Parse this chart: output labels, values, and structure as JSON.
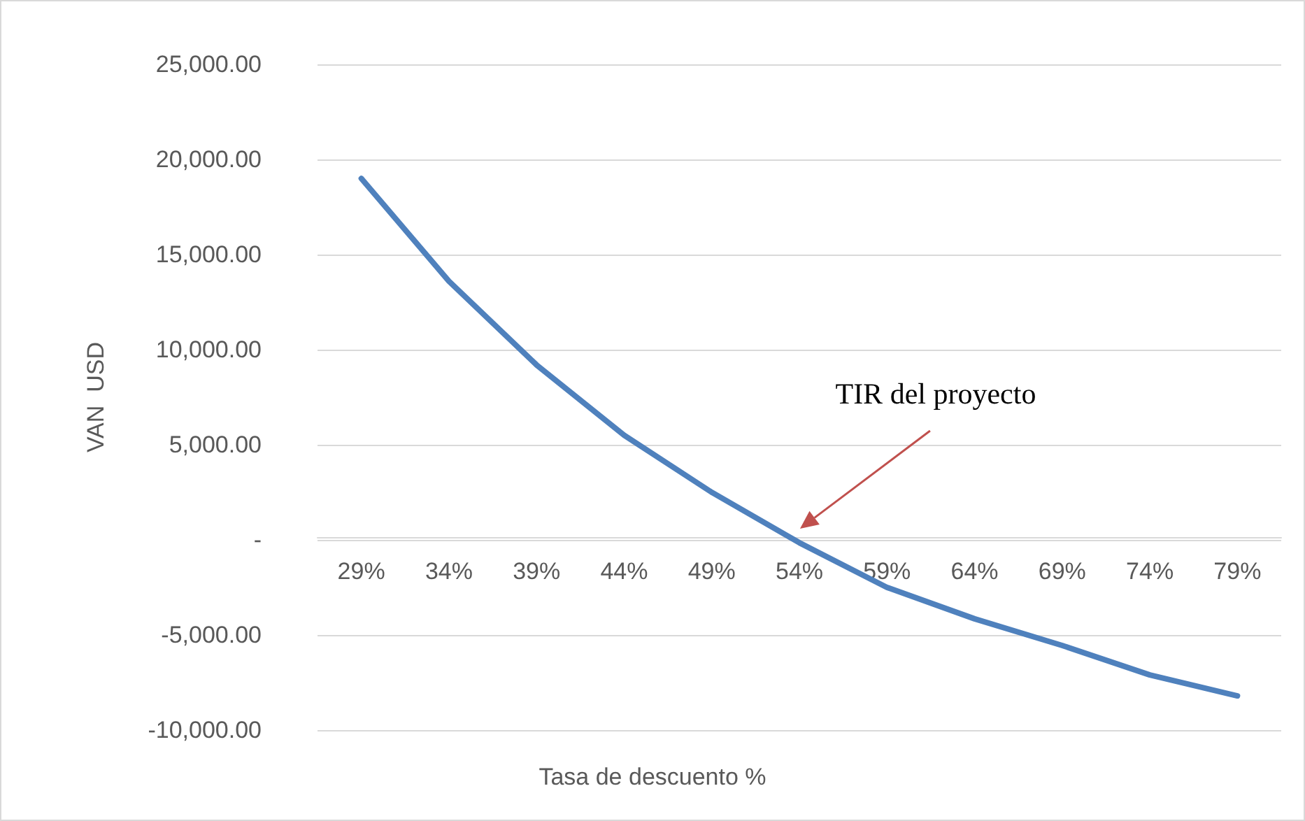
{
  "chart_data": {
    "type": "line",
    "xlabel": "Tasa de descuento %",
    "ylabel": "VAN  USD",
    "categories": [
      "29%",
      "34%",
      "39%",
      "44%",
      "49%",
      "54%",
      "59%",
      "64%",
      "69%",
      "74%",
      "79%"
    ],
    "series": [
      {
        "color": "#4f81bd",
        "values": [
          19000,
          13600,
          9200,
          5500,
          2500,
          -150,
          -2500,
          -4150,
          -5550,
          -7100,
          -8200
        ]
      }
    ],
    "ylim": [
      -10000,
      25000
    ],
    "yticks": [
      {
        "value": -10000,
        "label": "-10,000.00"
      },
      {
        "value": -5000,
        "label": "-5,000.00"
      },
      {
        "value": 0,
        "label": "-"
      },
      {
        "value": 5000,
        "label": "5,000.00"
      },
      {
        "value": 10000,
        "label": "10,000.00"
      },
      {
        "value": 15000,
        "label": "15,000.00"
      },
      {
        "value": 20000,
        "label": "20,000.00"
      },
      {
        "value": 25000,
        "label": "25,000.00"
      }
    ],
    "grid": "y",
    "marker": "none",
    "line_style": "solid",
    "annotations": [
      "TIR del proyecto"
    ]
  }
}
